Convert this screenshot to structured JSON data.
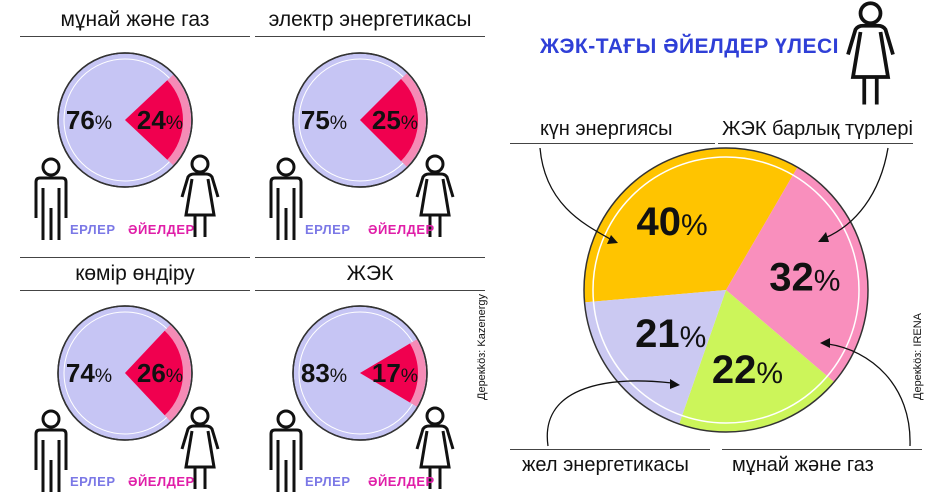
{
  "labels": {
    "men": "ЕРЛЕР",
    "women": "ӘЙЕЛДЕР"
  },
  "sources": {
    "left": "Дерекköз: Kazenergy",
    "right": "Дерекköз: IRENA"
  },
  "main_title": "ЖЭК-ТАҒЫ ӘЙЕЛДЕР ҮЛЕСІ",
  "colors": {
    "men": "#c6c5f4",
    "women": "#f0004f",
    "women_ring": "#f58bb6",
    "accent_title": "#2f3fd7",
    "solar": "#ffc400",
    "all_res": "#f98fbd",
    "oil_gas": "#ccf55a",
    "wind": "#cbc9f2"
  },
  "chart_data": [
    {
      "type": "pie",
      "title": "мұнай және газ",
      "categories": [
        "ЕРЛЕР",
        "ӘЙЕЛДЕР"
      ],
      "values": [
        76,
        24
      ],
      "value_labels": [
        "76",
        "24"
      ]
    },
    {
      "type": "pie",
      "title": "электр энергетикасы",
      "categories": [
        "ЕРЛЕР",
        "ӘЙЕЛДЕР"
      ],
      "values": [
        75,
        25
      ],
      "value_labels": [
        "75",
        "25"
      ]
    },
    {
      "type": "pie",
      "title": "көмір өндіру",
      "categories": [
        "ЕРЛЕР",
        "ӘЙЕЛДЕР"
      ],
      "values": [
        74,
        26
      ],
      "value_labels": [
        "74",
        "26"
      ]
    },
    {
      "type": "pie",
      "title": "ЖЭК",
      "categories": [
        "ЕРЛЕР",
        "ӘЙЕЛДЕР"
      ],
      "values": [
        83,
        17
      ],
      "value_labels": [
        "83",
        "17"
      ]
    },
    {
      "type": "pie",
      "title": "ЖЭК-ТАҒЫ ӘЙЕЛДЕР ҮЛЕСІ",
      "categories": [
        "күн энергиясы",
        "ЖЭК барлық түрлері",
        "мұнай және газ",
        "жел энергетикасы"
      ],
      "values": [
        40,
        32,
        22,
        21
      ],
      "value_labels": [
        "40",
        "32",
        "22",
        "21"
      ]
    }
  ],
  "percent_sign": "%"
}
